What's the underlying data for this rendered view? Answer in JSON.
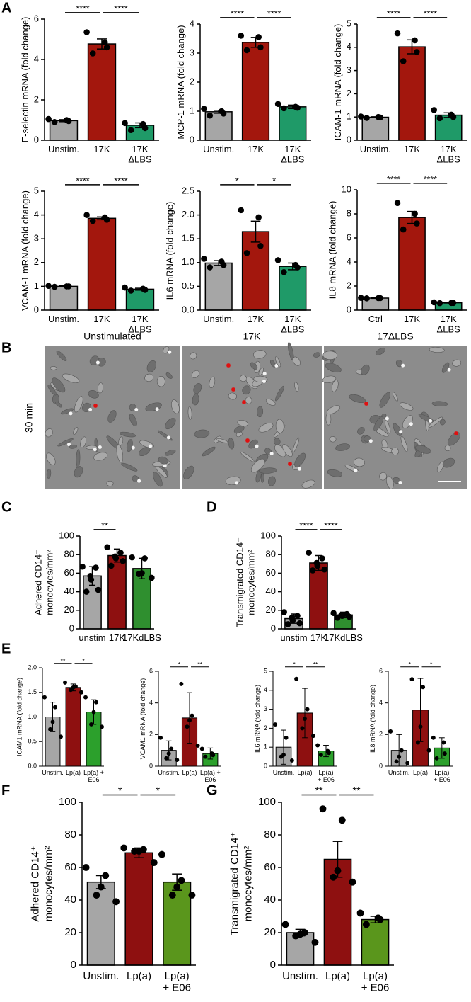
{
  "panel_labels": [
    "A",
    "B",
    "C",
    "D",
    "E",
    "F",
    "G"
  ],
  "images": {
    "columns": [
      "Unstimulated",
      "17K",
      "17ΔLBS"
    ],
    "row_label": "30 min"
  },
  "chart_data": [
    {
      "type": "bar",
      "ylabel": "E-selectin mRNA (fold change)",
      "categories": [
        "Unstim.",
        "17K",
        "17K\nΔLBS"
      ],
      "colors": [
        "#a6a6a6",
        "#a3170d",
        "#1f9a68"
      ],
      "values": [
        0.97,
        4.77,
        0.74
      ],
      "errors": [
        0.05,
        0.25,
        0.12
      ],
      "points": [
        [
          1.05,
          1.0,
          0.95,
          0.9
        ],
        [
          5.35,
          4.85,
          4.6,
          4.3
        ],
        [
          0.85,
          0.8,
          0.6,
          0.5
        ]
      ],
      "ylim": [
        0,
        6
      ],
      "yticks": [
        0,
        2,
        4,
        6
      ],
      "annotations": [
        {
          "from": 0,
          "to": 1,
          "label": "****"
        },
        {
          "from": 1,
          "to": 2,
          "label": "****"
        }
      ]
    },
    {
      "type": "bar",
      "ylabel": "MCP-1 mRNA (fold change)",
      "categories": [
        "Unstim.",
        "17K",
        "17K\nΔLBS"
      ],
      "colors": [
        "#a6a6a6",
        "#a3170d",
        "#1f9a68"
      ],
      "values": [
        0.98,
        3.37,
        1.15
      ],
      "errors": [
        0.05,
        0.17,
        0.06
      ],
      "points": [
        [
          1.08,
          1.0,
          0.92,
          0.85
        ],
        [
          3.6,
          3.55,
          3.2,
          3.1
        ],
        [
          1.25,
          1.15,
          1.12,
          1.1
        ]
      ],
      "ylim": [
        0,
        4
      ],
      "yticks": [
        0,
        1,
        2,
        3,
        4
      ],
      "annotations": [
        {
          "from": 0,
          "to": 1,
          "label": "****"
        },
        {
          "from": 1,
          "to": 2,
          "label": "****"
        }
      ]
    },
    {
      "type": "bar",
      "ylabel": "ICAM-1 mRNA (fold change)",
      "categories": [
        "Unstim.",
        "17K",
        "17K\nΔLBS"
      ],
      "colors": [
        "#a6a6a6",
        "#a3170d",
        "#1f9a68"
      ],
      "values": [
        0.99,
        4.02,
        1.08
      ],
      "errors": [
        0.02,
        0.3,
        0.1
      ],
      "points": [
        [
          1.02,
          1.0,
          0.98,
          0.96
        ],
        [
          4.6,
          4.3,
          3.8,
          3.4
        ],
        [
          1.3,
          1.1,
          1.0,
          0.95
        ]
      ],
      "ylim": [
        0,
        5
      ],
      "yticks": [
        0,
        1,
        2,
        3,
        4,
        5
      ],
      "annotations": [
        {
          "from": 0,
          "to": 1,
          "label": "****"
        },
        {
          "from": 1,
          "to": 2,
          "label": "****"
        }
      ]
    },
    {
      "type": "bar",
      "ylabel": "VCAM-1 mRNA (fold change)",
      "categories": [
        "Unstim.",
        "17K",
        "17K\nΔLBS"
      ],
      "colors": [
        "#a6a6a6",
        "#a3170d",
        "#1f9a68"
      ],
      "values": [
        1.0,
        3.86,
        0.88
      ],
      "errors": [
        0.02,
        0.06,
        0.04
      ],
      "points": [
        [
          1.02,
          1.0,
          1.0,
          0.98
        ],
        [
          4.0,
          3.9,
          3.8,
          3.75
        ],
        [
          0.95,
          0.9,
          0.85,
          0.82
        ]
      ],
      "ylim": [
        0,
        5
      ],
      "yticks": [
        0,
        1,
        2,
        3,
        4,
        5
      ],
      "annotations": [
        {
          "from": 0,
          "to": 1,
          "label": "****"
        },
        {
          "from": 1,
          "to": 2,
          "label": "****"
        }
      ]
    },
    {
      "type": "bar",
      "ylabel": "IL6 mRNA (fold change)",
      "categories": [
        "Unstim.",
        "17K",
        "17K\nΔLBS"
      ],
      "colors": [
        "#a6a6a6",
        "#a3170d",
        "#1f9a68"
      ],
      "values": [
        0.99,
        1.65,
        0.92
      ],
      "errors": [
        0.05,
        0.22,
        0.07
      ],
      "points": [
        [
          1.08,
          1.02,
          0.95,
          0.9
        ],
        [
          2.1,
          1.95,
          1.35,
          1.2
        ],
        [
          1.05,
          0.95,
          0.9,
          0.8
        ]
      ],
      "ylim": [
        0,
        2.5
      ],
      "yticks": [
        {
          "value": 0,
          "label": "0.0"
        },
        0.5,
        {
          "value": 1,
          "label": "1.0"
        },
        1.5,
        {
          "value": 2,
          "label": "2.0"
        },
        2.5
      ],
      "annotations": [
        {
          "from": 0,
          "to": 1,
          "label": "*"
        },
        {
          "from": 1,
          "to": 2,
          "label": "*"
        }
      ]
    },
    {
      "type": "bar",
      "ylabel": "IL8 mRNA (fold change)",
      "categories": [
        "Ctrl",
        "17K",
        "17K\nΔLBS"
      ],
      "colors": [
        "#a6a6a6",
        "#a3170d",
        "#1f9a68"
      ],
      "values": [
        1.0,
        7.7,
        0.61
      ],
      "errors": [
        0.02,
        0.5,
        0.02
      ],
      "points": [
        [
          1.02,
          1.0,
          1.0,
          0.98
        ],
        [
          8.9,
          8.0,
          7.2,
          6.7
        ],
        [
          0.65,
          0.6,
          0.6,
          0.58
        ]
      ],
      "ylim": [
        0,
        10
      ],
      "yticks": [
        0,
        2,
        4,
        6,
        8,
        10
      ],
      "annotations": [
        {
          "from": 0,
          "to": 1,
          "label": "****"
        },
        {
          "from": 1,
          "to": 2,
          "label": "****"
        }
      ]
    },
    {
      "type": "bar",
      "ylabel": [
        "Adhered CD14⁺",
        "monocytes/mm²"
      ],
      "categories": [
        "unstim",
        "17K",
        "17KdLBS"
      ],
      "colors": [
        "#a6a6a6",
        "#8e1010",
        "#2f8f2f"
      ],
      "values": [
        57,
        79,
        65
      ],
      "errors": [
        10,
        7,
        11
      ],
      "points": [
        [
          67,
          66,
          57,
          53,
          42,
          40
        ],
        [
          88,
          82,
          78,
          76,
          73,
          68
        ],
        [
          77,
          76,
          60,
          59,
          55
        ]
      ],
      "ylim": [
        0,
        100
      ],
      "yticks": [
        0,
        20,
        40,
        60,
        80,
        100
      ],
      "annotations": [
        {
          "from": 0,
          "to": 1,
          "label": "**"
        }
      ]
    },
    {
      "type": "bar",
      "ylabel": [
        "Transmigrated CD14⁺",
        "monocytes/mm²"
      ],
      "categories": [
        "unstim",
        "17K",
        "17KdLBS"
      ],
      "colors": [
        "#a6a6a6",
        "#8e1010",
        "#2f8f2f"
      ],
      "values": [
        11,
        71,
        15
      ],
      "errors": [
        5,
        8,
        3
      ],
      "points": [
        [
          18,
          14,
          12,
          9,
          6,
          5
        ],
        [
          82,
          76,
          71,
          68,
          64,
          63
        ],
        [
          17,
          16,
          15,
          14,
          13,
          12
        ]
      ],
      "ylim": [
        0,
        100
      ],
      "yticks": [
        0,
        20,
        40,
        60,
        80,
        100
      ],
      "annotations": [
        {
          "from": 0,
          "to": 1,
          "label": "****"
        },
        {
          "from": 1,
          "to": 2,
          "label": "****"
        }
      ]
    },
    {
      "type": "bar",
      "ylabel": "ICAM1 mRNA (fold change)",
      "categories": [
        "Unstim.",
        "Lp(a)",
        "Lp(a) +\nE06"
      ],
      "colors": [
        "#a6a6a6",
        "#8e1010",
        "#2ca02c"
      ],
      "values": [
        1.0,
        1.6,
        1.1
      ],
      "errors": [
        0.3,
        0.07,
        0.25
      ],
      "points": [
        [
          1.4,
          1.2,
          0.9,
          0.75,
          0.6
        ],
        [
          1.7,
          1.62,
          1.6,
          1.55,
          1.5
        ],
        [
          1.4,
          1.3,
          1.1,
          0.85,
          0.8
        ]
      ],
      "ylim": [
        0,
        2
      ],
      "yticks": [
        {
          "value": 0,
          "label": "0.0"
        },
        0.5,
        {
          "value": 1,
          "label": "1.0"
        },
        1.5,
        {
          "value": 2,
          "label": "2.0"
        }
      ],
      "annotations": [
        {
          "from": 0,
          "to": 1,
          "label": "**"
        },
        {
          "from": 1,
          "to": 2,
          "label": "*"
        }
      ]
    },
    {
      "type": "bar",
      "ylabel": "VCAM1 mRNA (fold change)",
      "categories": [
        "Unstim.",
        "Lp(a)",
        "Lp(a) +\nE06"
      ],
      "colors": [
        "#a6a6a6",
        "#8e1010",
        "#2ca02c"
      ],
      "values": [
        1.0,
        3.05,
        0.8
      ],
      "errors": [
        0.6,
        1.6,
        0.35
      ],
      "points": [
        [
          1.8,
          1.1,
          0.8,
          0.5,
          0.4
        ],
        [
          5.2,
          3.2,
          2.9,
          2.5,
          1.3
        ],
        [
          1.1,
          0.8,
          0.7,
          0.6
        ]
      ],
      "ylim": [
        0,
        6
      ],
      "yticks": [
        0,
        2,
        4,
        6
      ],
      "annotations": [
        {
          "from": 0,
          "to": 1,
          "label": "*"
        },
        {
          "from": 1,
          "to": 2,
          "label": "**"
        }
      ]
    },
    {
      "type": "bar",
      "ylabel": "IL6 mRNA (fold change)",
      "categories": [
        "Unstim.",
        "Lp(a)",
        "Lp(a)\n+ E06"
      ],
      "colors": [
        "#a6a6a6",
        "#8e1010",
        "#2ca02c"
      ],
      "values": [
        1.0,
        2.8,
        0.8
      ],
      "errors": [
        0.9,
        1.3,
        0.3
      ],
      "points": [
        [
          2.2,
          1.5,
          0.6,
          0.5,
          0.3
        ],
        [
          4.6,
          3.0,
          2.5,
          2.0,
          1.6
        ],
        [
          1.1,
          0.8,
          0.7,
          0.6
        ]
      ],
      "ylim": [
        0,
        5
      ],
      "yticks": [
        0,
        1,
        2,
        3,
        4,
        5
      ],
      "annotations": [
        {
          "from": 0,
          "to": 1,
          "label": "*"
        },
        {
          "from": 1,
          "to": 2,
          "label": "**"
        }
      ]
    },
    {
      "type": "bar",
      "ylabel": "IL8 mRNA (fold change)",
      "categories": [
        "Unstim.",
        "Lp(a)",
        "Lp(a)\n+ E06"
      ],
      "colors": [
        "#a6a6a6",
        "#8e1010",
        "#2ca02c"
      ],
      "values": [
        1.0,
        3.55,
        1.15
      ],
      "errors": [
        1.0,
        2.0,
        0.65
      ],
      "points": [
        [
          2.2,
          1.0,
          0.6,
          0.3,
          0.2
        ],
        [
          5.5,
          5.0,
          2.5,
          1.5,
          1.0
        ],
        [
          1.8,
          1.5,
          0.8,
          0.5
        ]
      ],
      "ylim": [
        0,
        6
      ],
      "yticks": [
        0,
        2,
        4,
        6
      ],
      "annotations": [
        {
          "from": 0,
          "to": 1,
          "label": "*"
        },
        {
          "from": 1,
          "to": 2,
          "label": "*"
        }
      ]
    },
    {
      "type": "bar",
      "ylabel": [
        "Adhered CD14⁺",
        "monocytes/mm²"
      ],
      "categories": [
        "Unstim.",
        "Lp(a)",
        "Lp(a)\n+ E06"
      ],
      "colors": [
        "#a6a6a6",
        "#8e1010",
        "#5a961c"
      ],
      "values": [
        51,
        69,
        51
      ],
      "errors": [
        4,
        3,
        5
      ],
      "points": [
        [
          60,
          55,
          48,
          43,
          39
        ],
        [
          72,
          71,
          70,
          70,
          63
        ],
        [
          68,
          52,
          48,
          43,
          43
        ]
      ],
      "ylim": [
        0,
        100
      ],
      "yticks": [
        0,
        20,
        40,
        60,
        80,
        100
      ],
      "annotations": [
        {
          "from": 0,
          "to": 1,
          "label": "*"
        },
        {
          "from": 1,
          "to": 2,
          "label": "*"
        }
      ]
    },
    {
      "type": "bar",
      "ylabel": [
        "Transmigrated CD14⁺",
        "monocytes/mm²"
      ],
      "categories": [
        "Unstim.",
        "Lp(a)",
        "Lp(a)\n+ E06"
      ],
      "colors": [
        "#a6a6a6",
        "#8e1010",
        "#5a961c"
      ],
      "values": [
        20,
        65,
        28
      ],
      "errors": [
        2,
        11,
        2
      ],
      "points": [
        [
          25,
          20,
          19,
          18,
          14
        ],
        [
          96,
          89,
          58,
          54,
          51
        ],
        [
          32,
          29,
          28,
          25
        ]
      ],
      "ylim": [
        0,
        100
      ],
      "yticks": [
        0,
        20,
        40,
        60,
        80,
        100
      ],
      "annotations": [
        {
          "from": 0,
          "to": 1,
          "label": "**"
        },
        {
          "from": 1,
          "to": 2,
          "label": "**"
        }
      ]
    }
  ]
}
